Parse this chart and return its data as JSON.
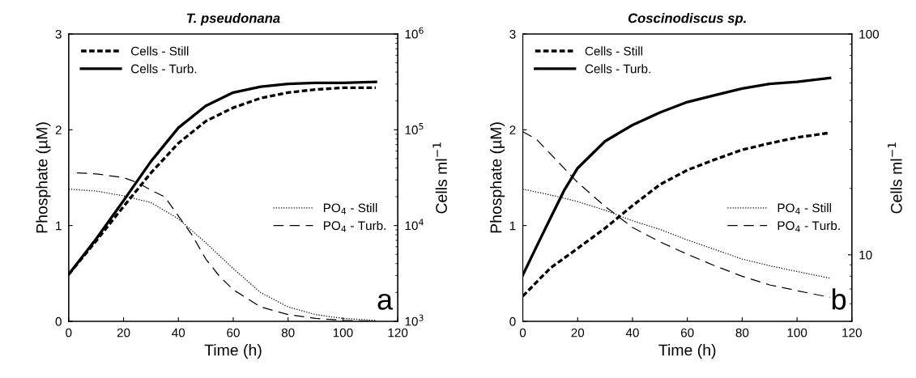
{
  "chart_data": [
    {
      "type": "line",
      "title": "T. pseudonana",
      "xlabel": "Time (h)",
      "ylabel": "Phosphate (µM)",
      "y2label": "Cells ml$^{−1}$",
      "xlim": [
        0,
        120
      ],
      "xticks": [
        0,
        20,
        40,
        60,
        80,
        100,
        120
      ],
      "ylim": [
        0,
        3
      ],
      "yticks": [
        0,
        1,
        2,
        3
      ],
      "y2lim": [
        1000,
        1000000
      ],
      "y2ticks": [
        {
          "value": 1000,
          "label": "10$^{3}$"
        },
        {
          "value": 10000,
          "label": "10$^{4}$"
        },
        {
          "value": 100000,
          "label": "10$^{5}$"
        },
        {
          "value": 1000000,
          "label": "10$^{6}$"
        }
      ],
      "log": "y2",
      "legend": "top left",
      "grid": false,
      "annotations": [
        "a"
      ],
      "series": [
        {
          "name": "Cells - Still",
          "color": "#000000",
          "axis": "y2",
          "line_style": "dashed",
          "x": [
            0,
            10,
            20,
            30,
            40,
            50,
            60,
            70,
            80,
            90,
            100,
            112
          ],
          "values": [
            3090,
            6900,
            15800,
            35500,
            72400,
            123000,
            170000,
            214000,
            245000,
            263000,
            275000,
            275000
          ]
        },
        {
          "name": "Cells - Turb.",
          "color": "#000000",
          "axis": "y2",
          "line_style": "solid",
          "x": [
            0,
            10,
            20,
            30,
            40,
            50,
            60,
            70,
            80,
            90,
            100,
            112
          ],
          "values": [
            3090,
            7240,
            18200,
            46800,
            105000,
            178000,
            245000,
            282000,
            302000,
            309000,
            309000,
            316000
          ]
        },
        {
          "name": "PO$_{4}$ - Still",
          "color": "#000000",
          "line_style": "dotted",
          "x": [
            0,
            10,
            20,
            30,
            40,
            50,
            60,
            70,
            80,
            90,
            100,
            112
          ],
          "values": [
            1.38,
            1.36,
            1.31,
            1.24,
            1.07,
            0.82,
            0.55,
            0.3,
            0.15,
            0.07,
            0.03,
            0.01
          ]
        },
        {
          "name": "PO$_{4}$ - Turb.",
          "color": "#000000",
          "line_style": "dashed",
          "x": [
            3,
            10,
            20,
            25,
            30,
            35,
            40,
            45,
            50,
            55,
            60,
            70,
            80,
            90,
            100,
            112
          ],
          "values": [
            1.55,
            1.54,
            1.5,
            1.45,
            1.37,
            1.3,
            1.1,
            0.9,
            0.65,
            0.47,
            0.33,
            0.15,
            0.07,
            0.03,
            0.01,
            0.0
          ]
        }
      ]
    },
    {
      "type": "line",
      "title": "Coscinodiscus sp.",
      "xlabel": "Time (h)",
      "ylabel": "Phosphate (µM)",
      "y2label": "Cells ml$^{−1}$",
      "xlim": [
        0,
        120
      ],
      "xticks": [
        0,
        20,
        40,
        60,
        80,
        100,
        120
      ],
      "ylim": [
        0,
        3
      ],
      "yticks": [
        0,
        1,
        2,
        3
      ],
      "y2lim": [
        5,
        100
      ],
      "y2ticks": [
        10,
        100
      ],
      "log": "y2",
      "legend": "top left",
      "grid": false,
      "annotations": [
        "b"
      ],
      "series": [
        {
          "name": "Cells - Still",
          "color": "#000000",
          "axis": "y2",
          "line_style": "dashed",
          "x": [
            0,
            10,
            20,
            30,
            40,
            50,
            60,
            70,
            80,
            90,
            100,
            112
          ],
          "values": [
            6.5,
            8.7,
            10.7,
            13.2,
            16.7,
            20.8,
            24.2,
            27.0,
            29.9,
            32.0,
            34.0,
            35.7
          ]
        },
        {
          "name": "Cells - Turb.",
          "color": "#000000",
          "axis": "y2",
          "line_style": "solid",
          "x": [
            0,
            5,
            10,
            15,
            20,
            30,
            40,
            50,
            60,
            70,
            80,
            90,
            100,
            112
          ],
          "values": [
            8.1,
            10.9,
            14.6,
            19.5,
            24.7,
            32.7,
            38.7,
            44.1,
            49.2,
            52.8,
            56.6,
            59.5,
            60.7,
            63.2
          ]
        },
        {
          "name": "PO$_{4}$ - Still",
          "color": "#000000",
          "line_style": "dotted",
          "x": [
            0,
            10,
            20,
            30,
            40,
            50,
            60,
            70,
            80,
            90,
            100,
            112
          ],
          "values": [
            1.38,
            1.32,
            1.25,
            1.16,
            1.05,
            0.96,
            0.85,
            0.75,
            0.65,
            0.58,
            0.52,
            0.45
          ]
        },
        {
          "name": "PO$_{4}$ - Turb.",
          "color": "#000000",
          "line_style": "dashed",
          "x": [
            0,
            5,
            10,
            15,
            20,
            30,
            40,
            50,
            60,
            70,
            80,
            90,
            100,
            112
          ],
          "values": [
            1.98,
            1.9,
            1.75,
            1.6,
            1.45,
            1.2,
            0.98,
            0.83,
            0.7,
            0.58,
            0.47,
            0.38,
            0.32,
            0.25
          ]
        }
      ]
    }
  ]
}
